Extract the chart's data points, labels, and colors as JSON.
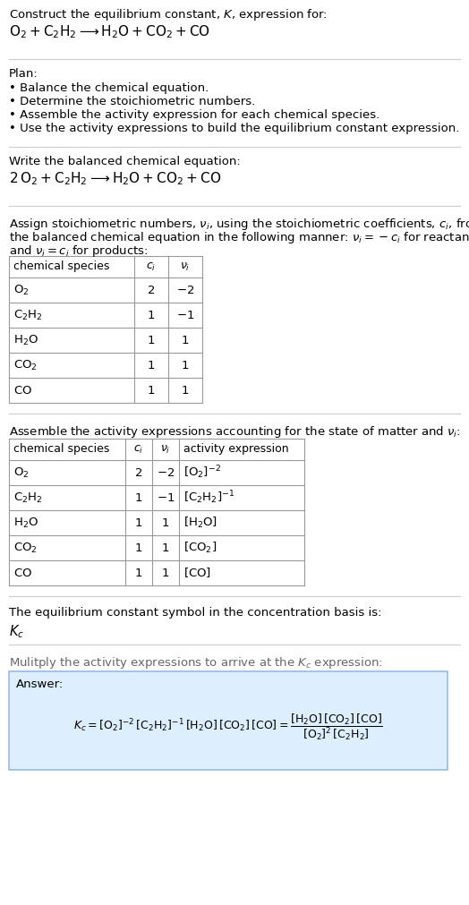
{
  "title_line1": "Construct the equilibrium constant, $K$, expression for:",
  "title_line2": "$\\mathrm{O_2 + C_2H_2 \\longrightarrow H_2O + CO_2 + CO}$",
  "plan_header": "Plan:",
  "plan_items": [
    "• Balance the chemical equation.",
    "• Determine the stoichiometric numbers.",
    "• Assemble the activity expression for each chemical species.",
    "• Use the activity expressions to build the equilibrium constant expression."
  ],
  "balanced_header": "Write the balanced chemical equation:",
  "balanced_eq": "$\\mathrm{2\\,O_2 + C_2H_2 \\longrightarrow H_2O + CO_2 + CO}$",
  "stoich_line1": "Assign stoichiometric numbers, $\\nu_i$, using the stoichiometric coefficients, $c_i$, from",
  "stoich_line2": "the balanced chemical equation in the following manner: $\\nu_i = -c_i$ for reactants",
  "stoich_line3": "and $\\nu_i = c_i$ for products:",
  "table1_cols": [
    "chemical species",
    "$c_i$",
    "$\\nu_i$"
  ],
  "table1_rows": [
    [
      "$\\mathrm{O_2}$",
      "2",
      "$-2$"
    ],
    [
      "$\\mathrm{C_2H_2}$",
      "1",
      "$-1$"
    ],
    [
      "$\\mathrm{H_2O}$",
      "1",
      "$1$"
    ],
    [
      "$\\mathrm{CO_2}$",
      "1",
      "$1$"
    ],
    [
      "$\\mathrm{CO}$",
      "1",
      "$1$"
    ]
  ],
  "activity_header": "Assemble the activity expressions accounting for the state of matter and $\\nu_i$:",
  "table2_cols": [
    "chemical species",
    "$c_i$",
    "$\\nu_i$",
    "activity expression"
  ],
  "table2_rows": [
    [
      "$\\mathrm{O_2}$",
      "2",
      "$-2$",
      "$[\\mathrm{O_2}]^{-2}$"
    ],
    [
      "$\\mathrm{C_2H_2}$",
      "1",
      "$-1$",
      "$[\\mathrm{C_2H_2}]^{-1}$"
    ],
    [
      "$\\mathrm{H_2O}$",
      "1",
      "$1$",
      "$[\\mathrm{H_2O}]$"
    ],
    [
      "$\\mathrm{CO_2}$",
      "1",
      "$1$",
      "$[\\mathrm{CO_2}]$"
    ],
    [
      "$\\mathrm{CO}$",
      "1",
      "$1$",
      "$[\\mathrm{CO}]$"
    ]
  ],
  "kc_header": "The equilibrium constant symbol in the concentration basis is:",
  "kc_symbol": "$K_c$",
  "multiply_header": "Mulitply the activity expressions to arrive at the $K_c$ expression:",
  "answer_label": "Answer:",
  "bg_color": "#ffffff",
  "text_color": "#000000",
  "gray_text_color": "#666666",
  "table_border_color": "#999999",
  "answer_box_bg": "#ddeeff",
  "answer_box_border": "#99bbdd",
  "separator_color": "#cccccc",
  "font_size": 9.5
}
